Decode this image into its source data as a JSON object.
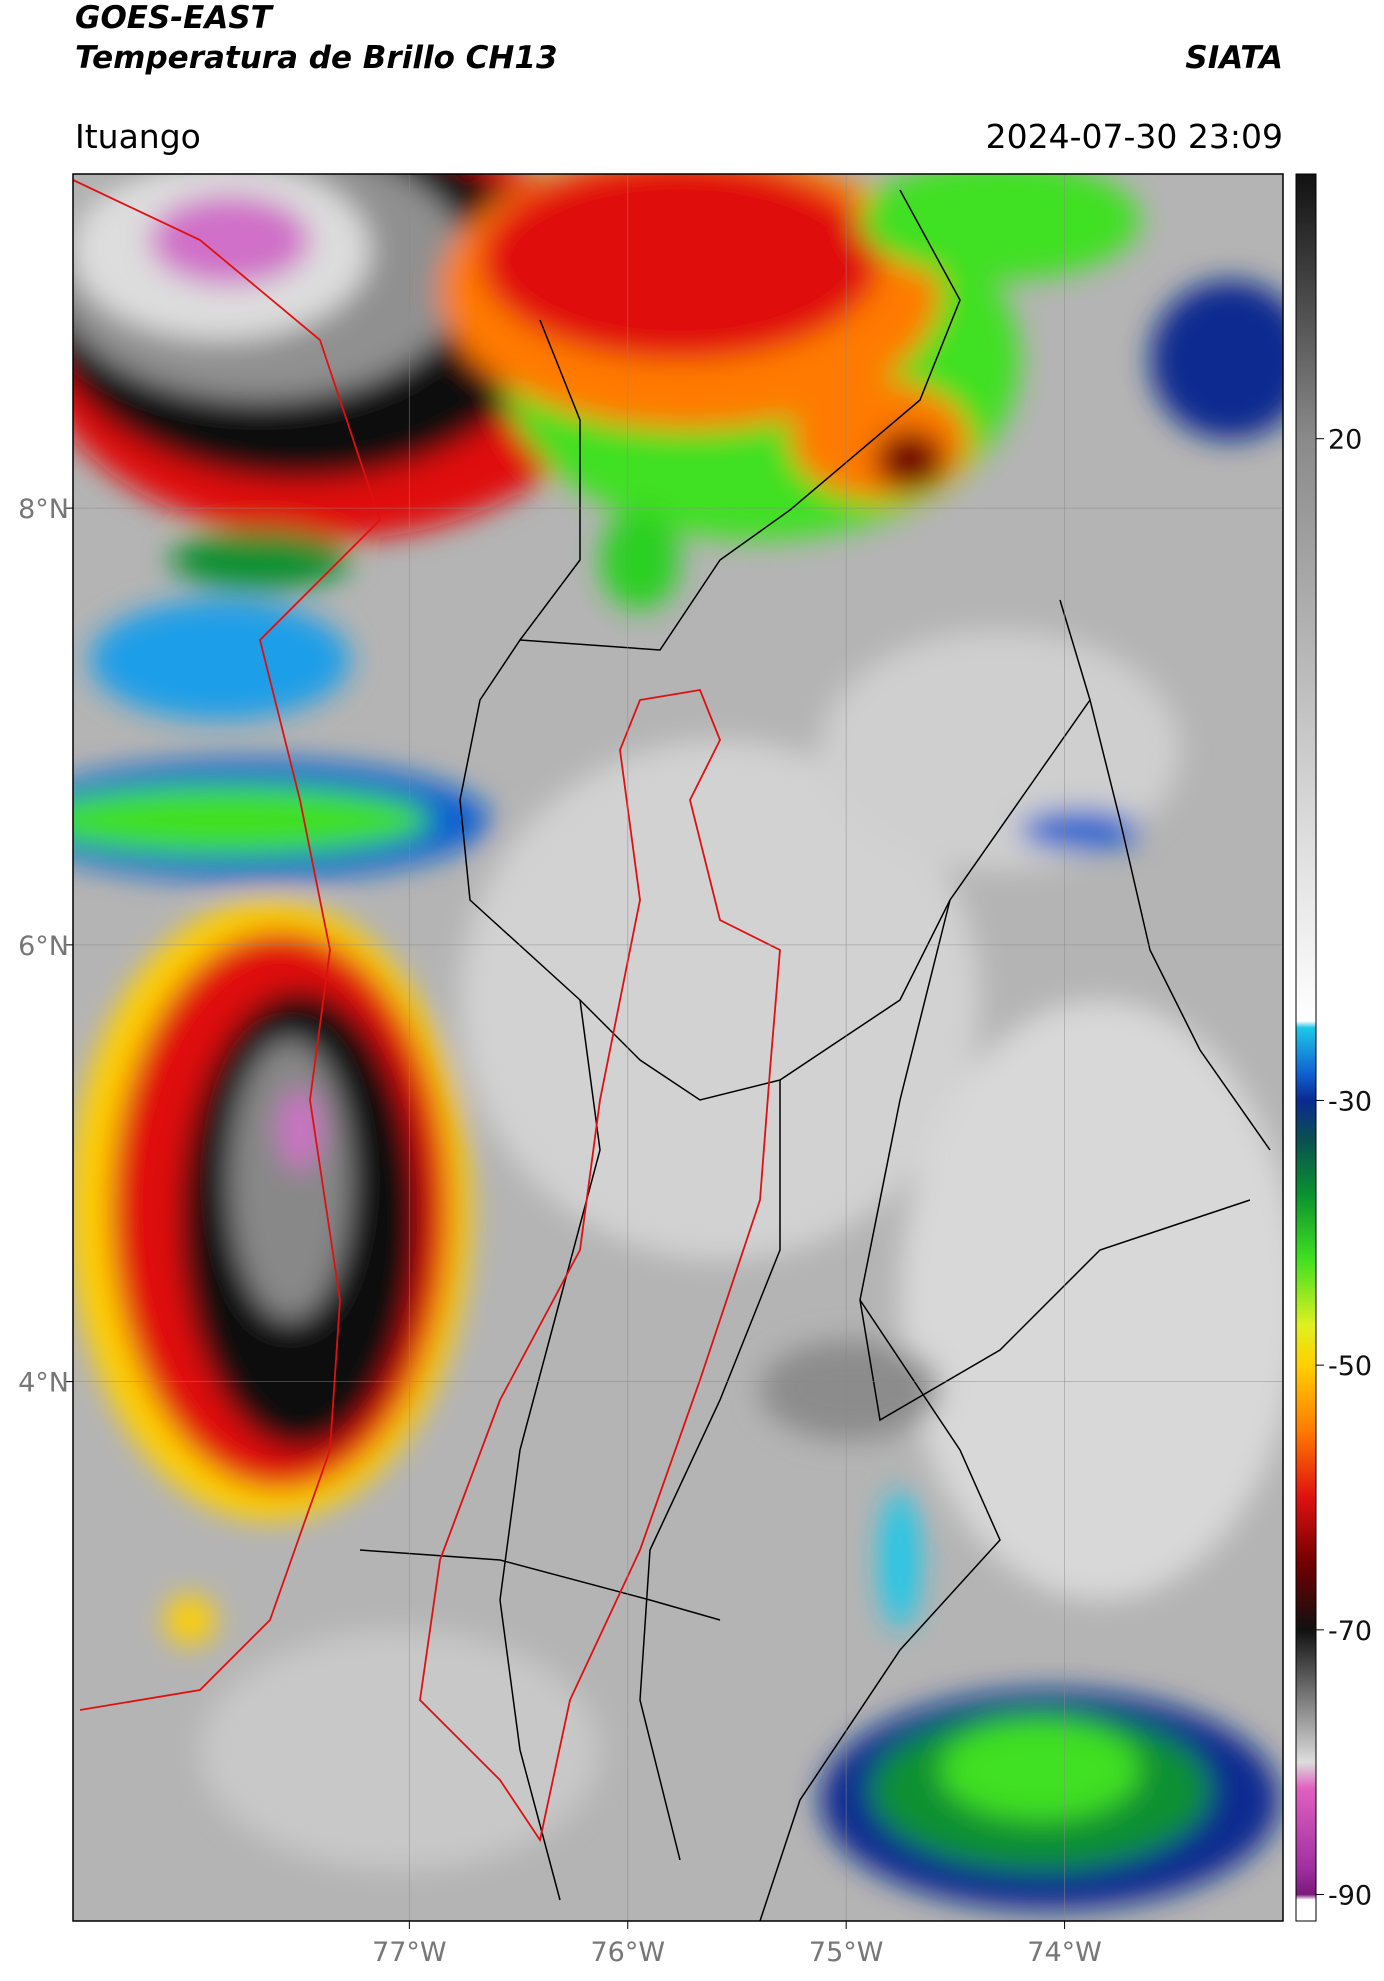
{
  "header": {
    "title": "GOES-EAST",
    "subtitle": "Temperatura de Brillo CH13",
    "source": "SIATA",
    "location": "Ituango",
    "datetime": "2024-07-30 23:09"
  },
  "map": {
    "xlim": [
      -78.54,
      -73.0
    ],
    "ylim": [
      1.53,
      9.53
    ],
    "grid": true,
    "xticks": [
      {
        "value": -77,
        "label": "77°W"
      },
      {
        "value": -76,
        "label": "76°W"
      },
      {
        "value": -75,
        "label": "75°W"
      },
      {
        "value": -74,
        "label": "74°W"
      }
    ],
    "yticks": [
      {
        "value": 8,
        "label": "8°N"
      },
      {
        "value": 6,
        "label": "6°N"
      },
      {
        "value": 4,
        "label": "4°N"
      }
    ]
  },
  "colorbar": {
    "clim": [
      -92,
      40
    ],
    "ticks": [
      20,
      -30,
      -50,
      -70,
      -90
    ],
    "colormap": [
      {
        "value": 40,
        "color": "#111111"
      },
      {
        "value": 20,
        "color": "#8a8a8a"
      },
      {
        "value": -10,
        "color": "#dddddd"
      },
      {
        "value": -24,
        "color": "#ffffff"
      },
      {
        "value": -24.5,
        "color": "#1ec8e8"
      },
      {
        "value": -28,
        "color": "#1060d0"
      },
      {
        "value": -30,
        "color": "#0a2a90"
      },
      {
        "value": -33,
        "color": "#0a5050"
      },
      {
        "value": -37,
        "color": "#0a9030"
      },
      {
        "value": -42,
        "color": "#40e020"
      },
      {
        "value": -47,
        "color": "#e0f020"
      },
      {
        "value": -50,
        "color": "#ffd000"
      },
      {
        "value": -55,
        "color": "#ff7a00"
      },
      {
        "value": -60,
        "color": "#e01010"
      },
      {
        "value": -65,
        "color": "#700000"
      },
      {
        "value": -70,
        "color": "#111111"
      },
      {
        "value": -75,
        "color": "#777777"
      },
      {
        "value": -80,
        "color": "#dddddd"
      },
      {
        "value": -82,
        "color": "#e060c0"
      },
      {
        "value": -88,
        "color": "#a030a0"
      },
      {
        "value": -90,
        "color": "#7a1a7a"
      },
      {
        "value": -90.4,
        "color": "#ffffff"
      },
      {
        "value": -92,
        "color": "#ffffff"
      }
    ]
  }
}
